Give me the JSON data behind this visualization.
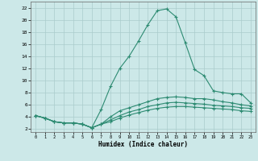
{
  "xlabel": "Humidex (Indice chaleur)",
  "bg_color": "#cce8e8",
  "grid_color": "#aacccc",
  "line_color": "#2d8b72",
  "x_values": [
    0,
    1,
    2,
    3,
    4,
    5,
    6,
    7,
    8,
    9,
    10,
    11,
    12,
    13,
    14,
    15,
    16,
    17,
    18,
    19,
    20,
    21,
    22,
    23
  ],
  "lines": [
    [
      4.2,
      3.8,
      3.2,
      3.0,
      3.0,
      2.8,
      2.2,
      5.2,
      9.0,
      12.0,
      14.0,
      16.5,
      19.2,
      21.5,
      21.8,
      20.5,
      16.2,
      11.8,
      10.8,
      8.3,
      8.0,
      7.8,
      7.8,
      6.3
    ],
    [
      4.2,
      3.8,
      3.2,
      3.0,
      3.0,
      2.8,
      2.2,
      2.8,
      4.0,
      5.0,
      5.5,
      6.0,
      6.5,
      7.0,
      7.2,
      7.3,
      7.2,
      7.0,
      7.0,
      6.8,
      6.5,
      6.3,
      6.0,
      5.8
    ],
    [
      4.2,
      3.8,
      3.2,
      3.0,
      3.0,
      2.8,
      2.2,
      2.8,
      3.5,
      4.2,
      4.8,
      5.2,
      5.7,
      6.0,
      6.3,
      6.4,
      6.3,
      6.2,
      6.1,
      5.9,
      5.8,
      5.7,
      5.5,
      5.4
    ],
    [
      4.2,
      3.8,
      3.2,
      3.0,
      3.0,
      2.8,
      2.2,
      2.8,
      3.2,
      3.8,
      4.3,
      4.7,
      5.1,
      5.4,
      5.6,
      5.7,
      5.7,
      5.6,
      5.5,
      5.4,
      5.3,
      5.2,
      5.0,
      4.9
    ]
  ],
  "xlim": [
    -0.5,
    23.5
  ],
  "ylim": [
    1.5,
    23
  ],
  "yticks": [
    2,
    4,
    6,
    8,
    10,
    12,
    14,
    16,
    18,
    20,
    22
  ],
  "xticks": [
    0,
    1,
    2,
    3,
    4,
    5,
    6,
    7,
    8,
    9,
    10,
    11,
    12,
    13,
    14,
    15,
    16,
    17,
    18,
    19,
    20,
    21,
    22,
    23
  ],
  "xtick_labels": [
    "0",
    "1",
    "2",
    "3",
    "4",
    "5",
    "6",
    "7",
    "8",
    "9",
    "10",
    "11",
    "12",
    "13",
    "14",
    "15",
    "16",
    "17",
    "18",
    "19",
    "20",
    "21",
    "22",
    "23"
  ]
}
